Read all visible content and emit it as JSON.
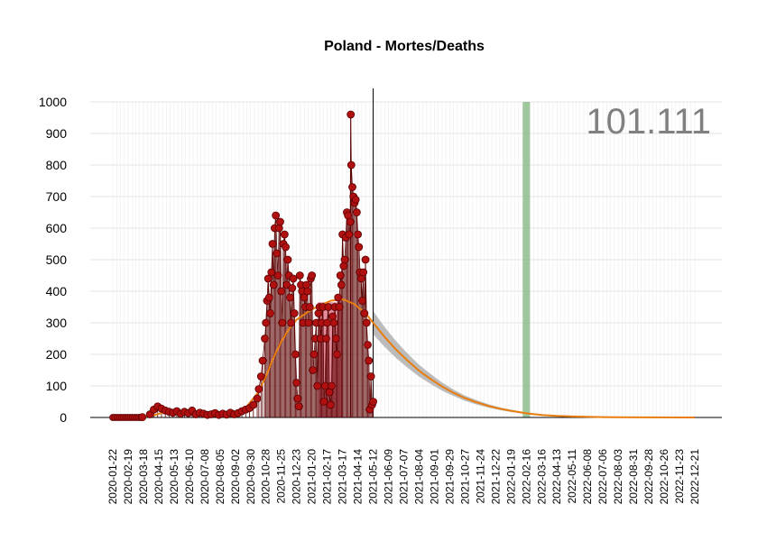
{
  "chart_data": {
    "type": "line",
    "title": "Poland - Mortes/Deaths",
    "annotation": "101.111",
    "ylim": [
      0,
      1000
    ],
    "y_ticks": [
      0,
      100,
      200,
      300,
      400,
      500,
      600,
      700,
      800,
      900,
      1000
    ],
    "x_tick_labels": [
      "2020-01-22",
      "2020-02-19",
      "2020-03-18",
      "2020-04-15",
      "2020-05-13",
      "2020-06-10",
      "2020-07-08",
      "2020-08-05",
      "2020-09-02",
      "2020-09-30",
      "2020-10-28",
      "2020-11-25",
      "2020-12-23",
      "2021-01-20",
      "2021-02-17",
      "2021-03-17",
      "2021-04-14",
      "2021-05-12",
      "2021-06-09",
      "2021-07-07",
      "2021-08-04",
      "2021-09-01",
      "2021-09-29",
      "2021-10-27",
      "2021-11-24",
      "2021-12-22",
      "2022-01-19",
      "2022-02-16",
      "2022-03-16",
      "2022-04-13",
      "2022-05-11",
      "2022-06-08",
      "2022-07-06",
      "2022-08-03",
      "2022-08-31",
      "2022-09-28",
      "2022-10-26",
      "2022-11-23",
      "2022-12-21"
    ],
    "x_range": [
      "2020-01-22",
      "2022-12-21"
    ],
    "current_date": "2021-05-12",
    "peak_date": "2022-02-16",
    "grid": true,
    "colors": {
      "observed": "#b01010",
      "observed_edge": "#5a0000",
      "fit": "#e87d0e",
      "band": "#b0b0b0",
      "peak_band": "#7fb57f",
      "pink_band": "#c8304a"
    },
    "series": [
      {
        "kind": "observed_daily",
        "x": [
          "2020-03-16",
          "2020-03-30",
          "2020-04-06",
          "2020-04-13",
          "2020-04-20",
          "2020-04-27",
          "2020-05-04",
          "2020-05-11",
          "2020-05-18",
          "2020-05-25",
          "2020-06-01",
          "2020-06-08",
          "2020-06-15",
          "2020-06-22",
          "2020-06-29",
          "2020-07-06",
          "2020-07-13",
          "2020-07-20",
          "2020-07-27",
          "2020-08-03",
          "2020-08-10",
          "2020-08-17",
          "2020-08-24",
          "2020-08-31",
          "2020-09-07",
          "2020-09-14",
          "2020-09-21",
          "2020-09-28",
          "2020-10-05",
          "2020-10-12",
          "2020-10-15",
          "2020-10-19",
          "2020-10-22",
          "2020-10-26",
          "2020-10-28",
          "2020-10-30",
          "2020-11-01",
          "2020-11-03",
          "2020-11-05",
          "2020-11-07",
          "2020-11-09",
          "2020-11-11",
          "2020-11-13",
          "2020-11-15",
          "2020-11-17",
          "2020-11-19",
          "2020-11-21",
          "2020-11-23",
          "2020-11-25",
          "2020-11-27",
          "2020-11-29",
          "2020-12-01",
          "2020-12-03",
          "2020-12-05",
          "2020-12-07",
          "2020-12-09",
          "2020-12-11",
          "2020-12-13",
          "2020-12-15",
          "2020-12-17",
          "2020-12-19",
          "2020-12-21",
          "2020-12-23",
          "2020-12-25",
          "2020-12-27",
          "2020-12-29",
          "2020-12-31",
          "2021-01-02",
          "2021-01-04",
          "2021-01-06",
          "2021-01-08",
          "2021-01-10",
          "2021-01-12",
          "2021-01-14",
          "2021-01-16",
          "2021-01-18",
          "2021-01-20",
          "2021-01-22",
          "2021-01-24",
          "2021-01-26",
          "2021-01-28",
          "2021-01-30",
          "2021-02-01",
          "2021-02-03",
          "2021-02-05",
          "2021-02-07",
          "2021-02-09",
          "2021-02-11",
          "2021-02-13",
          "2021-02-15",
          "2021-02-17",
          "2021-02-19",
          "2021-02-21",
          "2021-02-23",
          "2021-02-25",
          "2021-02-27",
          "2021-03-01",
          "2021-03-03",
          "2021-03-05",
          "2021-03-07",
          "2021-03-09",
          "2021-03-11",
          "2021-03-13",
          "2021-03-15",
          "2021-03-17",
          "2021-03-19",
          "2021-03-21",
          "2021-03-23",
          "2021-03-25",
          "2021-03-27",
          "2021-03-29",
          "2021-03-31",
          "2021-04-01",
          "2021-04-02",
          "2021-04-04",
          "2021-04-06",
          "2021-04-08",
          "2021-04-10",
          "2021-04-12",
          "2021-04-14",
          "2021-04-16",
          "2021-04-18",
          "2021-04-20",
          "2021-04-22",
          "2021-04-24",
          "2021-04-26",
          "2021-04-28",
          "2021-04-30",
          "2021-05-02",
          "2021-05-04",
          "2021-05-06",
          "2021-05-08",
          "2021-05-10",
          "2021-05-12"
        ],
        "y": [
          1,
          10,
          25,
          35,
          28,
          22,
          18,
          15,
          20,
          12,
          18,
          14,
          22,
          10,
          15,
          12,
          8,
          10,
          14,
          8,
          12,
          9,
          15,
          10,
          14,
          20,
          25,
          30,
          40,
          60,
          90,
          130,
          180,
          250,
          300,
          370,
          440,
          380,
          330,
          460,
          550,
          420,
          600,
          640,
          520,
          450,
          600,
          620,
          400,
          300,
          550,
          580,
          540,
          420,
          500,
          450,
          380,
          300,
          410,
          440,
          330,
          200,
          110,
          60,
          35,
          450,
          420,
          400,
          300,
          380,
          350,
          420,
          400,
          300,
          350,
          440,
          450,
          150,
          200,
          250,
          300,
          100,
          330,
          350,
          250,
          300,
          350,
          50,
          100,
          250,
          300,
          350,
          80,
          40,
          100,
          320,
          300,
          350,
          250,
          200,
          380,
          350,
          450,
          420,
          580,
          480,
          500,
          570,
          650,
          640,
          580,
          620,
          960,
          800,
          730,
          700,
          680,
          690,
          650,
          580,
          540,
          460,
          440,
          370,
          460,
          330,
          500,
          300,
          230,
          180,
          25,
          130,
          40,
          50
        ]
      },
      {
        "kind": "fitted_curve",
        "x": [
          "2020-01-22",
          "2020-03-04",
          "2020-04-01",
          "2020-04-22",
          "2020-05-13",
          "2020-06-03",
          "2020-07-01",
          "2020-08-05",
          "2020-09-02",
          "2020-09-23",
          "2020-10-14",
          "2020-10-28",
          "2020-11-11",
          "2020-11-25",
          "2020-12-09",
          "2020-12-23",
          "2021-01-13",
          "2021-02-03",
          "2021-02-24",
          "2021-03-17",
          "2021-04-07",
          "2021-04-28",
          "2021-05-12",
          "2021-06-02",
          "2021-06-23",
          "2021-07-14",
          "2021-08-04",
          "2021-08-25",
          "2021-09-15",
          "2021-10-06",
          "2021-10-27",
          "2021-11-17",
          "2021-12-08",
          "2021-12-29",
          "2022-01-19",
          "2022-02-16",
          "2022-03-16",
          "2022-04-13",
          "2022-05-11",
          "2022-06-08",
          "2022-07-06",
          "2022-08-03",
          "2022-09-28",
          "2022-12-21"
        ],
        "y": [
          0,
          0,
          5,
          15,
          20,
          18,
          15,
          12,
          15,
          35,
          80,
          130,
          190,
          240,
          280,
          310,
          335,
          355,
          370,
          375,
          360,
          330,
          300,
          255,
          215,
          180,
          148,
          122,
          98,
          78,
          61,
          48,
          37,
          28,
          21,
          13,
          8,
          5,
          3,
          2,
          1,
          0.5,
          0.2,
          0
        ]
      }
    ]
  }
}
